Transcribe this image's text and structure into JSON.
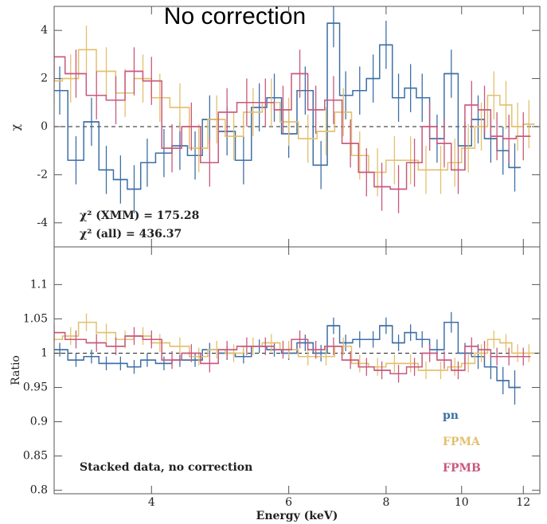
{
  "chart_data": [
    {
      "type": "step",
      "title": "No correction",
      "ylabel": "χ",
      "ylim": [
        -5,
        5
      ],
      "yticks": [
        -4,
        -2,
        0,
        2,
        4
      ],
      "xlim": [
        3,
        12.6
      ],
      "log_x": true,
      "hline": 0,
      "annotations": [
        "χ² (XMM) = 175.28",
        "χ² (all) = 436.37"
      ],
      "series": [
        {
          "color": "#3e6fa6",
          "x": [
            3.05,
            3.2,
            3.35,
            3.5,
            3.65,
            3.8,
            3.95,
            4.15,
            4.35,
            4.55,
            4.75,
            5.0,
            5.25,
            5.5,
            5.75,
            6.0,
            6.3,
            6.6,
            6.85,
            7.1,
            7.4,
            7.7,
            8.0,
            8.3,
            8.6,
            8.9,
            9.3,
            9.7,
            10.1,
            10.5,
            10.9,
            11.3,
            11.7
          ],
          "values": [
            1.5,
            -1.4,
            0.2,
            -1.8,
            -2.2,
            -2.6,
            -1.5,
            -1.1,
            -0.8,
            -1.2,
            0.3,
            -0.2,
            -1.4,
            0.8,
            1.2,
            -0.3,
            1.5,
            -1.6,
            4.3,
            1.3,
            1.5,
            2.0,
            3.4,
            1.2,
            1.6,
            1.2,
            -0.5,
            2.2,
            -0.8,
            0.3,
            -0.5,
            -1.0,
            -1.7
          ],
          "errors": [
            1.0,
            1.0,
            1.0,
            1.0,
            1.0,
            1.0,
            1.0,
            1.0,
            1.0,
            1.0,
            1.0,
            1.0,
            1.0,
            1.0,
            1.0,
            1.0,
            1.0,
            1.0,
            1.0,
            1.0,
            1.0,
            1.0,
            1.0,
            1.0,
            1.0,
            1.0,
            1.0,
            1.0,
            1.0,
            1.0,
            1.0,
            1.0,
            1.0
          ]
        },
        {
          "color": "#e2c06e",
          "x": [
            3.0,
            3.15,
            3.3,
            3.5,
            3.7,
            3.9,
            4.1,
            4.35,
            4.6,
            4.85,
            5.1,
            5.4,
            5.7,
            6.0,
            6.35,
            6.7,
            7.05,
            7.4,
            7.8,
            8.2,
            8.6,
            9.0,
            9.4,
            9.8,
            10.2,
            10.6,
            11.0,
            11.4,
            11.8,
            12.2
          ],
          "values": [
            1.9,
            2.0,
            3.2,
            2.3,
            1.4,
            2.0,
            1.2,
            0.8,
            -0.9,
            0.3,
            -0.4,
            0.6,
            1.0,
            0.2,
            -0.5,
            -0.2,
            0.6,
            -1.2,
            -1.9,
            -1.4,
            -1.4,
            -1.8,
            -1.8,
            -1.5,
            -0.9,
            0.0,
            1.3,
            0.9,
            0.0,
            0.1
          ],
          "errors": [
            1.0,
            1.0,
            1.0,
            1.0,
            1.0,
            1.0,
            1.0,
            1.0,
            1.0,
            1.0,
            1.0,
            1.0,
            1.0,
            1.0,
            1.0,
            1.0,
            1.0,
            1.0,
            1.0,
            1.0,
            1.0,
            1.0,
            1.0,
            1.0,
            1.0,
            1.0,
            1.0,
            1.0,
            1.0,
            1.0
          ]
        },
        {
          "color": "#c8587c",
          "x": [
            3.0,
            3.2,
            3.4,
            3.6,
            3.8,
            4.0,
            4.25,
            4.5,
            4.75,
            5.0,
            5.3,
            5.6,
            5.9,
            6.2,
            6.5,
            6.85,
            7.2,
            7.55,
            7.9,
            8.3,
            8.7,
            9.1,
            9.5,
            9.9,
            10.3,
            10.7,
            11.1,
            11.5,
            12.0
          ],
          "values": [
            2.9,
            2.2,
            1.3,
            1.1,
            2.3,
            1.9,
            -0.9,
            0.0,
            -1.5,
            0.6,
            1.0,
            1.0,
            0.7,
            2.2,
            0.7,
            1.1,
            -0.7,
            -1.9,
            -2.5,
            -2.6,
            -1.5,
            0.0,
            -0.7,
            -1.8,
            0.9,
            0.7,
            -0.4,
            -0.5,
            -0.4
          ],
          "errors": [
            1.0,
            1.0,
            1.0,
            1.0,
            1.0,
            1.0,
            1.0,
            1.0,
            1.0,
            1.0,
            1.0,
            1.0,
            1.0,
            1.0,
            1.0,
            1.0,
            1.0,
            1.0,
            1.0,
            1.0,
            1.0,
            1.0,
            1.0,
            1.0,
            1.0,
            1.0,
            1.0,
            1.0,
            1.0
          ]
        }
      ]
    },
    {
      "type": "step",
      "ylabel": "Ratio",
      "xlabel": "Energy (keV)",
      "ylim": [
        0.795,
        1.155
      ],
      "yticks": [
        0.8,
        0.85,
        0.9,
        0.95,
        1,
        1.05,
        1.1
      ],
      "xlim": [
        3,
        12.6
      ],
      "xticks": [
        4,
        6,
        8,
        10,
        12
      ],
      "log_x": true,
      "hline": 1,
      "legend": "lower right",
      "annotations": [
        "Stacked data, no correction"
      ],
      "series": [
        {
          "name": "pn",
          "color": "#3e6fa6",
          "x": [
            3.05,
            3.2,
            3.35,
            3.5,
            3.65,
            3.8,
            3.95,
            4.15,
            4.35,
            4.55,
            4.75,
            5.0,
            5.25,
            5.5,
            5.75,
            6.0,
            6.3,
            6.6,
            6.85,
            7.1,
            7.4,
            7.7,
            8.0,
            8.3,
            8.6,
            8.9,
            9.3,
            9.7,
            10.1,
            10.5,
            10.9,
            11.3,
            11.7
          ],
          "values": [
            1.005,
            0.99,
            0.995,
            0.985,
            0.985,
            0.98,
            0.99,
            0.985,
            0.99,
            0.99,
            1.005,
            1.0,
            0.995,
            1.01,
            1.005,
            1.0,
            1.015,
            1.0,
            1.04,
            1.015,
            1.02,
            1.02,
            1.04,
            1.015,
            1.03,
            1.02,
            1.005,
            1.045,
            1.0,
            0.995,
            0.98,
            0.96,
            0.95
          ],
          "errors": [
            0.01,
            0.01,
            0.01,
            0.01,
            0.01,
            0.01,
            0.01,
            0.01,
            0.01,
            0.01,
            0.01,
            0.01,
            0.01,
            0.01,
            0.01,
            0.01,
            0.012,
            0.012,
            0.012,
            0.012,
            0.012,
            0.012,
            0.012,
            0.012,
            0.012,
            0.012,
            0.015,
            0.015,
            0.015,
            0.018,
            0.018,
            0.02,
            0.025
          ]
        },
        {
          "name": "FPMA",
          "color": "#e2c06e",
          "x": [
            3.0,
            3.15,
            3.3,
            3.5,
            3.7,
            3.9,
            4.1,
            4.35,
            4.6,
            4.85,
            5.1,
            5.4,
            5.7,
            6.0,
            6.35,
            6.7,
            7.05,
            7.4,
            7.8,
            8.2,
            8.6,
            9.0,
            9.4,
            9.8,
            10.2,
            10.6,
            11.0,
            11.4,
            11.8,
            12.2
          ],
          "values": [
            1.02,
            1.025,
            1.045,
            1.03,
            1.02,
            1.025,
            1.015,
            1.01,
            0.995,
            1.005,
            1.0,
            1.01,
            1.015,
            1.005,
            0.995,
            0.995,
            1.01,
            0.985,
            0.98,
            0.985,
            0.985,
            0.975,
            0.975,
            0.98,
            0.985,
            1.0,
            1.02,
            1.015,
            1.0,
            1.0
          ],
          "errors": [
            0.013,
            0.013,
            0.013,
            0.013,
            0.013,
            0.013,
            0.013,
            0.013,
            0.013,
            0.013,
            0.013,
            0.013,
            0.013,
            0.013,
            0.013,
            0.013,
            0.013,
            0.013,
            0.013,
            0.013,
            0.013,
            0.013,
            0.013,
            0.013,
            0.013,
            0.013,
            0.013,
            0.013,
            0.013,
            0.013
          ]
        },
        {
          "name": "FPMB",
          "color": "#c8587c",
          "x": [
            3.0,
            3.2,
            3.4,
            3.6,
            3.8,
            4.0,
            4.25,
            4.5,
            4.75,
            5.0,
            5.3,
            5.6,
            5.9,
            6.2,
            6.5,
            6.85,
            7.2,
            7.55,
            7.9,
            8.3,
            8.7,
            9.1,
            9.5,
            9.9,
            10.3,
            10.7,
            11.1,
            11.5,
            12.0
          ],
          "values": [
            1.03,
            1.02,
            1.015,
            1.01,
            1.025,
            1.02,
            0.99,
            1.0,
            0.985,
            1.005,
            1.01,
            1.01,
            1.005,
            1.02,
            1.005,
            1.01,
            0.99,
            0.98,
            0.975,
            0.97,
            0.98,
            1.0,
            0.99,
            0.975,
            1.01,
            1.005,
            0.995,
            0.995,
            0.995
          ],
          "errors": [
            0.013,
            0.013,
            0.013,
            0.013,
            0.013,
            0.013,
            0.013,
            0.013,
            0.013,
            0.013,
            0.013,
            0.013,
            0.013,
            0.013,
            0.013,
            0.013,
            0.013,
            0.013,
            0.013,
            0.013,
            0.013,
            0.013,
            0.013,
            0.013,
            0.013,
            0.013,
            0.013,
            0.013,
            0.013
          ]
        }
      ]
    }
  ]
}
